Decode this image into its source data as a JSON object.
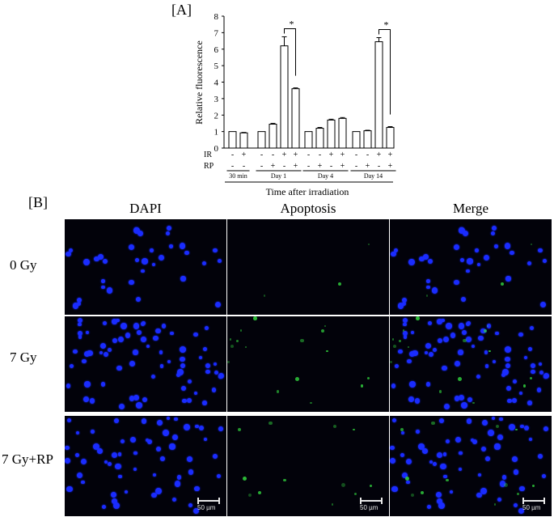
{
  "panel_a_label": "[A]",
  "panel_b_label": "[B]",
  "chart_data": {
    "type": "bar",
    "ylabel": "Relative fluorescence",
    "xlabel": "Time after irradiation",
    "ylim": [
      0,
      8
    ],
    "yticks": [
      "0",
      "1",
      "2",
      "3",
      "4",
      "5",
      "6",
      "7",
      "8"
    ],
    "groups": [
      "30 min",
      "Day 1",
      "Day 4",
      "Day 14"
    ],
    "bars": [
      {
        "group": 0,
        "ir": "-",
        "rp": "-",
        "value": 1.0,
        "err": 0.0
      },
      {
        "group": 0,
        "ir": "+",
        "rp": "-",
        "value": 0.92,
        "err": 0.03
      },
      {
        "group": 1,
        "ir": "-",
        "rp": "-",
        "value": 1.0,
        "err": 0.0
      },
      {
        "group": 1,
        "ir": "-",
        "rp": "+",
        "value": 1.45,
        "err": 0.05
      },
      {
        "group": 1,
        "ir": "+",
        "rp": "-",
        "value": 6.2,
        "err": 0.55
      },
      {
        "group": 1,
        "ir": "+",
        "rp": "+",
        "value": 3.6,
        "err": 0.05
      },
      {
        "group": 2,
        "ir": "-",
        "rp": "-",
        "value": 1.0,
        "err": 0.0
      },
      {
        "group": 2,
        "ir": "-",
        "rp": "+",
        "value": 1.2,
        "err": 0.05
      },
      {
        "group": 2,
        "ir": "+",
        "rp": "-",
        "value": 1.7,
        "err": 0.05
      },
      {
        "group": 2,
        "ir": "+",
        "rp": "+",
        "value": 1.8,
        "err": 0.05
      },
      {
        "group": 3,
        "ir": "-",
        "rp": "-",
        "value": 1.0,
        "err": 0.0
      },
      {
        "group": 3,
        "ir": "-",
        "rp": "+",
        "value": 1.05,
        "err": 0.03
      },
      {
        "group": 3,
        "ir": "+",
        "rp": "-",
        "value": 6.45,
        "err": 0.25
      },
      {
        "group": 3,
        "ir": "+",
        "rp": "+",
        "value": 1.25,
        "err": 0.05
      }
    ],
    "row_labels": [
      "IR",
      "RP"
    ],
    "significance": [
      {
        "bars": [
          4,
          5
        ],
        "label": "*"
      },
      {
        "bars": [
          12,
          13
        ],
        "label": "*"
      }
    ]
  },
  "columns": [
    "DAPI",
    "Apoptosis",
    "Merge"
  ],
  "rows": [
    "0 Gy",
    "7 Gy",
    "7 Gy+RP"
  ],
  "scale_bar_label": "50 µm",
  "colors": {
    "dapi": "#1a2cff",
    "apoptosis": "#33d940",
    "background": "#02020a",
    "bar_fill": "#ffffff"
  }
}
